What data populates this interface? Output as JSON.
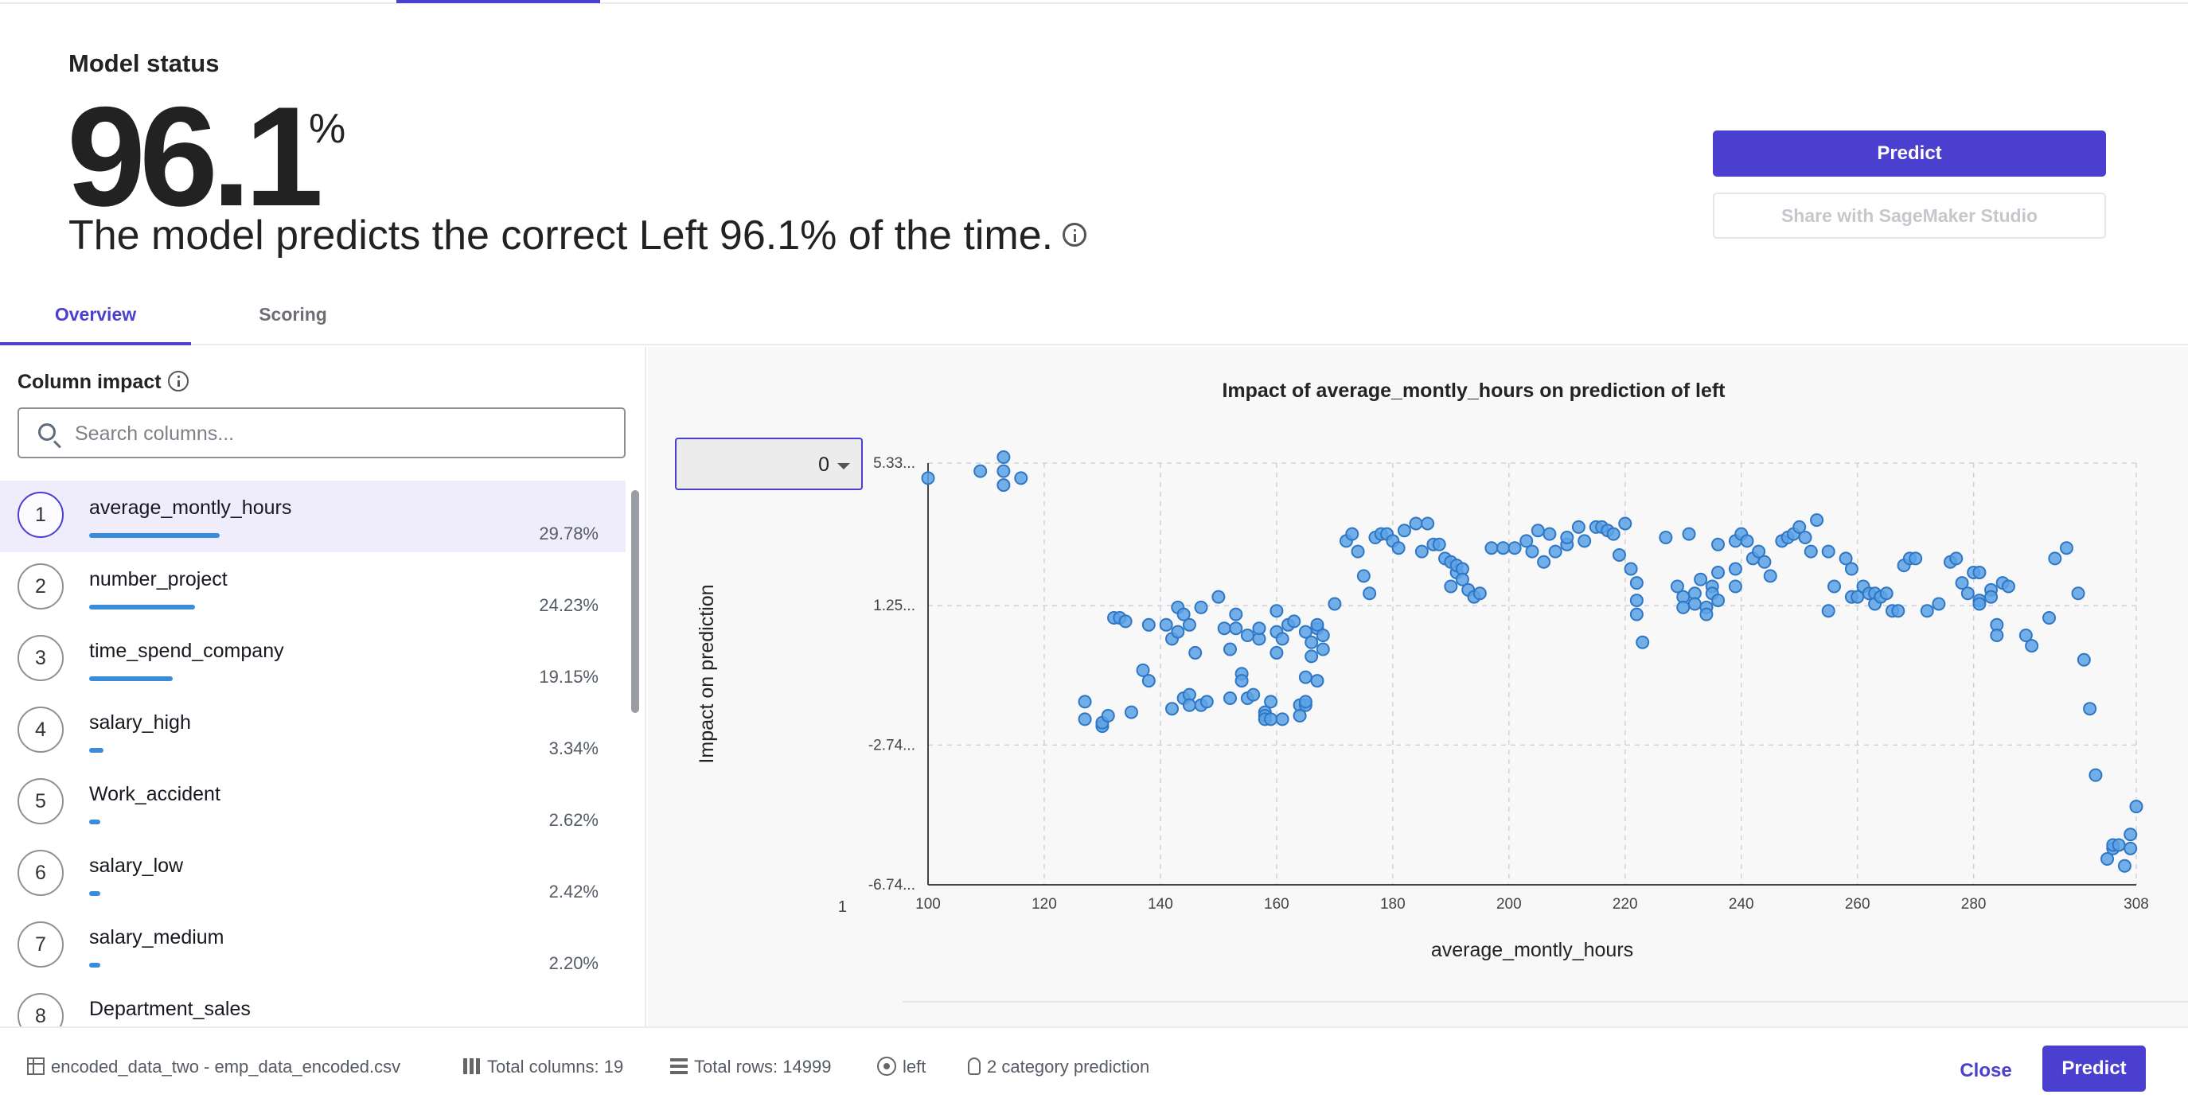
{
  "status": {
    "title": "Model status",
    "value": "96.1",
    "unit": "%",
    "description": "The model predicts the correct Left 96.1% of the time."
  },
  "actions": {
    "predict_label": "Predict",
    "share_label": "Share with SageMaker Studio"
  },
  "tabs": [
    {
      "label": "Overview",
      "active": true
    },
    {
      "label": "Scoring",
      "active": false
    }
  ],
  "column_impact": {
    "title": "Column impact",
    "search_placeholder": "Search columns...",
    "items": [
      {
        "rank": "1",
        "name": "average_montly_hours",
        "pct": "29.78%",
        "value": 29.78,
        "selected": true
      },
      {
        "rank": "2",
        "name": "number_project",
        "pct": "24.23%",
        "value": 24.23
      },
      {
        "rank": "3",
        "name": "time_spend_company",
        "pct": "19.15%",
        "value": 19.15
      },
      {
        "rank": "4",
        "name": "salary_high",
        "pct": "3.34%",
        "value": 3.34
      },
      {
        "rank": "5",
        "name": "Work_accident",
        "pct": "2.62%",
        "value": 2.62
      },
      {
        "rank": "6",
        "name": "salary_low",
        "pct": "2.42%",
        "value": 2.42
      },
      {
        "rank": "7",
        "name": "salary_medium",
        "pct": "2.20%",
        "value": 2.2
      },
      {
        "rank": "8",
        "name": "Department_sales",
        "pct": "",
        "value": null
      }
    ]
  },
  "chart": {
    "class_value": "0"
  },
  "chart_data": {
    "type": "scatter",
    "title": "Impact of average_montly_hours on prediction of left",
    "xlabel": "average_montly_hours",
    "ylabel": "Impact on prediction",
    "xlim": [
      100,
      308
    ],
    "ylim": [
      -6.74,
      5.33
    ],
    "x_ticks": [
      "100",
      "120",
      "140",
      "160",
      "180",
      "200",
      "220",
      "240",
      "260",
      "280",
      "308"
    ],
    "y_ticks": [
      "5.33...",
      "1.25...",
      "-2.74...",
      "-6.74..."
    ],
    "extra_label": "1",
    "grid": true,
    "color": "#5ba2e6",
    "points": [
      [
        100,
        4.9
      ],
      [
        109,
        5.1
      ],
      [
        113,
        4.7
      ],
      [
        113,
        5.1
      ],
      [
        113,
        5.5
      ],
      [
        116,
        4.9
      ],
      [
        127,
        -1.5
      ],
      [
        127,
        -2.0
      ],
      [
        130,
        -2.2
      ],
      [
        130,
        -2.1
      ],
      [
        131,
        -1.9
      ],
      [
        132,
        0.9
      ],
      [
        133,
        0.9
      ],
      [
        134,
        0.8
      ],
      [
        135,
        -1.8
      ],
      [
        137,
        -0.6
      ],
      [
        138,
        -0.9
      ],
      [
        138,
        0.7
      ],
      [
        141,
        0.7
      ],
      [
        142,
        -1.7
      ],
      [
        142,
        0.3
      ],
      [
        143,
        1.2
      ],
      [
        143,
        0.5
      ],
      [
        144,
        -1.4
      ],
      [
        144,
        1.0
      ],
      [
        145,
        -1.3
      ],
      [
        145,
        -1.6
      ],
      [
        145,
        0.7
      ],
      [
        146,
        -0.1
      ],
      [
        147,
        -1.6
      ],
      [
        147,
        1.2
      ],
      [
        148,
        -1.5
      ],
      [
        150,
        1.5
      ],
      [
        151,
        0.6
      ],
      [
        152,
        -1.4
      ],
      [
        152,
        0.0
      ],
      [
        153,
        1.0
      ],
      [
        153,
        0.6
      ],
      [
        154,
        -0.7
      ],
      [
        154,
        -0.9
      ],
      [
        155,
        -1.4
      ],
      [
        155,
        0.4
      ],
      [
        156,
        -1.3
      ],
      [
        157,
        0.3
      ],
      [
        157,
        0.6
      ],
      [
        158,
        -1.8
      ],
      [
        158,
        -1.9
      ],
      [
        158,
        -2.0
      ],
      [
        159,
        -1.5
      ],
      [
        159,
        -2.0
      ],
      [
        160,
        0.5
      ],
      [
        160,
        1.1
      ],
      [
        160,
        -0.1
      ],
      [
        161,
        0.3
      ],
      [
        161,
        -2.0
      ],
      [
        162,
        0.7
      ],
      [
        163,
        0.8
      ],
      [
        164,
        -1.6
      ],
      [
        164,
        -1.9
      ],
      [
        165,
        -1.6
      ],
      [
        165,
        -1.5
      ],
      [
        165,
        -0.8
      ],
      [
        165,
        0.5
      ],
      [
        166,
        0.2
      ],
      [
        166,
        -0.2
      ],
      [
        167,
        0.6
      ],
      [
        167,
        0.7
      ],
      [
        167,
        -0.9
      ],
      [
        168,
        0.4
      ],
      [
        168,
        0.0
      ],
      [
        170,
        1.3
      ],
      [
        172,
        3.1
      ],
      [
        173,
        3.3
      ],
      [
        174,
        2.8
      ],
      [
        175,
        2.1
      ],
      [
        176,
        1.6
      ],
      [
        177,
        3.2
      ],
      [
        178,
        3.3
      ],
      [
        179,
        3.3
      ],
      [
        180,
        3.1
      ],
      [
        181,
        2.9
      ],
      [
        182,
        3.4
      ],
      [
        184,
        3.6
      ],
      [
        185,
        2.8
      ],
      [
        186,
        3.6
      ],
      [
        187,
        3.0
      ],
      [
        188,
        3.0
      ],
      [
        189,
        2.6
      ],
      [
        190,
        2.5
      ],
      [
        190,
        1.8
      ],
      [
        191,
        2.2
      ],
      [
        191,
        2.4
      ],
      [
        192,
        2.3
      ],
      [
        192,
        2.0
      ],
      [
        193,
        1.7
      ],
      [
        194,
        1.5
      ],
      [
        195,
        1.6
      ],
      [
        197,
        2.9
      ],
      [
        199,
        2.9
      ],
      [
        201,
        2.9
      ],
      [
        203,
        3.1
      ],
      [
        204,
        2.8
      ],
      [
        205,
        3.4
      ],
      [
        206,
        2.5
      ],
      [
        207,
        3.3
      ],
      [
        208,
        2.8
      ],
      [
        210,
        3.0
      ],
      [
        210,
        3.2
      ],
      [
        212,
        3.5
      ],
      [
        213,
        3.1
      ],
      [
        215,
        3.5
      ],
      [
        216,
        3.5
      ],
      [
        217,
        3.4
      ],
      [
        218,
        3.3
      ],
      [
        219,
        2.7
      ],
      [
        220,
        3.6
      ],
      [
        221,
        2.3
      ],
      [
        222,
        1.0
      ],
      [
        222,
        1.4
      ],
      [
        222,
        1.9
      ],
      [
        223,
        0.2
      ],
      [
        227,
        3.2
      ],
      [
        229,
        1.8
      ],
      [
        230,
        1.5
      ],
      [
        230,
        1.2
      ],
      [
        231,
        3.3
      ],
      [
        232,
        1.6
      ],
      [
        232,
        1.3
      ],
      [
        233,
        2.0
      ],
      [
        234,
        1.2
      ],
      [
        234,
        1.0
      ],
      [
        235,
        1.8
      ],
      [
        235,
        1.6
      ],
      [
        236,
        2.2
      ],
      [
        236,
        1.4
      ],
      [
        236,
        3.0
      ],
      [
        239,
        3.1
      ],
      [
        239,
        2.3
      ],
      [
        239,
        1.8
      ],
      [
        240,
        3.3
      ],
      [
        241,
        3.1
      ],
      [
        242,
        2.6
      ],
      [
        243,
        2.8
      ],
      [
        244,
        2.5
      ],
      [
        245,
        2.1
      ],
      [
        247,
        3.1
      ],
      [
        248,
        3.2
      ],
      [
        249,
        3.3
      ],
      [
        250,
        3.5
      ],
      [
        251,
        3.2
      ],
      [
        252,
        2.8
      ],
      [
        253,
        3.7
      ],
      [
        255,
        2.8
      ],
      [
        255,
        1.1
      ],
      [
        256,
        1.8
      ],
      [
        258,
        2.6
      ],
      [
        259,
        2.3
      ],
      [
        259,
        1.5
      ],
      [
        260,
        1.5
      ],
      [
        261,
        1.8
      ],
      [
        262,
        1.6
      ],
      [
        263,
        1.6
      ],
      [
        263,
        1.3
      ],
      [
        264,
        1.5
      ],
      [
        265,
        1.6
      ],
      [
        266,
        1.1
      ],
      [
        267,
        1.1
      ],
      [
        268,
        2.4
      ],
      [
        269,
        2.6
      ],
      [
        270,
        2.6
      ],
      [
        272,
        1.1
      ],
      [
        274,
        1.3
      ],
      [
        276,
        2.5
      ],
      [
        277,
        2.6
      ],
      [
        278,
        1.9
      ],
      [
        279,
        1.6
      ],
      [
        280,
        2.2
      ],
      [
        281,
        2.2
      ],
      [
        281,
        1.4
      ],
      [
        281,
        1.3
      ],
      [
        283,
        1.7
      ],
      [
        283,
        1.5
      ],
      [
        284,
        0.7
      ],
      [
        284,
        0.4
      ],
      [
        285,
        1.9
      ],
      [
        286,
        1.8
      ],
      [
        289,
        0.4
      ],
      [
        290,
        0.1
      ],
      [
        293,
        0.9
      ],
      [
        294,
        2.6
      ],
      [
        296,
        2.9
      ],
      [
        298,
        1.6
      ],
      [
        299,
        -0.3
      ],
      [
        300,
        -1.7
      ],
      [
        301,
        -3.6
      ],
      [
        303,
        -6.0
      ],
      [
        304,
        -5.7
      ],
      [
        304,
        -5.6
      ],
      [
        305,
        -5.6
      ],
      [
        306,
        -6.2
      ],
      [
        307,
        -5.7
      ],
      [
        307,
        -5.3
      ],
      [
        308,
        -4.5
      ]
    ]
  },
  "footer": {
    "dataset": "encoded_data_two - emp_data_encoded.csv",
    "total_columns": "Total columns: 19",
    "total_rows": "Total rows: 14999",
    "target": "left",
    "prediction_type": "2 category prediction",
    "close_label": "Close",
    "predict_label": "Predict"
  }
}
